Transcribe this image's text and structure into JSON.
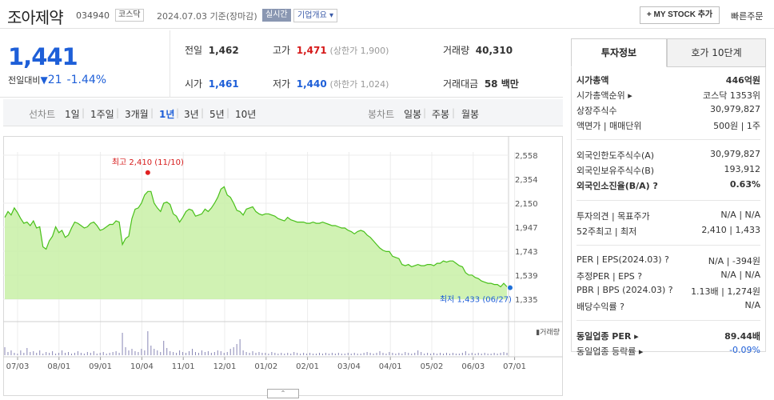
{
  "header": {
    "name": "조아제약",
    "code": "034940",
    "market_badge": "코스닥",
    "date": "2024.07.03 기준(장마감)",
    "live_badge": "실시간",
    "company_overview": "기업개요 ▾",
    "my_stock_button": "+ MY STOCK 추가",
    "quick_order": "빠른주문"
  },
  "price": {
    "current": "1,441",
    "change_label": "전일대비",
    "change_arrow": "▼",
    "change_value": "21",
    "change_pct": "-1.44%",
    "prev_close_label": "전일",
    "prev_close": "1,462",
    "high_label": "고가",
    "high": "1,471",
    "upper_limit": "(상한가 1,900)",
    "volume_label": "거래량",
    "volume": "40,310",
    "open_label": "시가",
    "open": "1,461",
    "low_label": "저가",
    "low": "1,440",
    "lower_limit": "(하한가 1,024)",
    "amount_label": "거래대금",
    "amount": "58 백만"
  },
  "tabs": {
    "line_label": "선차트",
    "periods": [
      "1일",
      "1주일",
      "3개월",
      "1년",
      "3년",
      "5년",
      "10년"
    ],
    "selected": "1년",
    "candle_label": "봉차트",
    "candle_periods": [
      "일봉",
      "주봉",
      "월봉"
    ]
  },
  "chart_data": {
    "type": "area",
    "title": "",
    "x_tick_labels": [
      "07/03",
      "08/01",
      "09/01",
      "10/04",
      "11/01",
      "12/01",
      "01/02",
      "02/01",
      "03/04",
      "04/01",
      "05/02",
      "06/03",
      "07/01"
    ],
    "y_tick_labels": [
      "2,558",
      "2,354",
      "2,150",
      "1,947",
      "1,743",
      "1,539",
      "1,335"
    ],
    "ylim": [
      1335,
      2558
    ],
    "values": [
      2030,
      2080,
      2050,
      2110,
      2070,
      2020,
      1980,
      1990,
      1960,
      2000,
      1940,
      1950,
      1780,
      1760,
      1830,
      1870,
      1950,
      1900,
      1920,
      1860,
      1880,
      1940,
      1990,
      1980,
      1960,
      1940,
      1950,
      1980,
      1990,
      1960,
      1920,
      1930,
      1950,
      1970,
      1970,
      2000,
      1990,
      1800,
      1850,
      1870,
      2020,
      2100,
      2110,
      2150,
      2220,
      2250,
      2250,
      2150,
      2110,
      2080,
      2150,
      2160,
      2140,
      2060,
      2040,
      1990,
      2030,
      2080,
      2100,
      2090,
      2040,
      2050,
      2060,
      2100,
      2080,
      2110,
      2150,
      2200,
      2270,
      2290,
      2220,
      2200,
      2150,
      2090,
      2080,
      2050,
      2100,
      2110,
      2120,
      2080,
      2060,
      2050,
      2060,
      2060,
      2050,
      2040,
      2020,
      2010,
      2000,
      2030,
      2010,
      2000,
      1990,
      1990,
      1990,
      1980,
      1980,
      1990,
      1980,
      1980,
      1990,
      1980,
      1970,
      1960,
      1960,
      1950,
      1940,
      1940,
      1920,
      1910,
      1890,
      1910,
      1920,
      1910,
      1880,
      1860,
      1830,
      1800,
      1770,
      1750,
      1740,
      1740,
      1700,
      1690,
      1680,
      1630,
      1620,
      1630,
      1610,
      1620,
      1630,
      1620,
      1620,
      1630,
      1630,
      1620,
      1640,
      1640,
      1660,
      1650,
      1660,
      1660,
      1640,
      1620,
      1610,
      1560,
      1540,
      1540,
      1520,
      1510,
      1490,
      1480,
      1470,
      1470,
      1460,
      1460,
      1440,
      1470,
      1441
    ],
    "volume_label": "거래량",
    "max_annotation": "최고 2,410 (11/10)",
    "max_value": 2410,
    "max_index": 45,
    "min_annotation": "최저 1,433 (06/27)",
    "min_value": 1433,
    "min_index": 159,
    "grid": true,
    "colors": {
      "line": "#49c01a",
      "fill": "#c8f0a6",
      "max_dot": "#e02020",
      "min_dot": "#1e6fd8"
    }
  },
  "slider_label": "⌃",
  "right_panel": {
    "tab_invest": "투자정보",
    "tab_quote": "호가 10단계",
    "rows": [
      {
        "k": "시가총액",
        "v": "446억원",
        "bold": true
      },
      {
        "k": "시가총액순위 ▸",
        "v": "코스닥 1353위"
      },
      {
        "k": "상장주식수",
        "v": "30,979,827"
      },
      {
        "k": "액면가 | 매매단위",
        "v": "500원 | 1주"
      },
      {
        "k": "외국인한도주식수(A)",
        "v": "30,979,827"
      },
      {
        "k": "외국인보유주식수(B)",
        "v": "193,912"
      },
      {
        "k": "외국인소진율(B/A) ?",
        "v": "0.63%",
        "bold": true
      },
      {
        "k": "투자의견 | 목표주가",
        "v": "N/A | N/A"
      },
      {
        "k": "52주최고 | 최저",
        "v": "2,410 | 1,433"
      },
      {
        "k": "PER | EPS(2024.03) ?",
        "v": "N/A | -394원"
      },
      {
        "k": "추정PER | EPS ?",
        "v": "N/A | N/A"
      },
      {
        "k": "PBR | BPS (2024.03) ?",
        "v": "1.13배 | 1,274원"
      },
      {
        "k": "배당수익률 ?",
        "v": "N/A"
      },
      {
        "k": "동일업종 PER ▸",
        "v": "89.44배",
        "bold": true
      },
      {
        "k": "동일업종 등락률 ▸",
        "v": "-0.09%",
        "blue": true
      }
    ]
  }
}
